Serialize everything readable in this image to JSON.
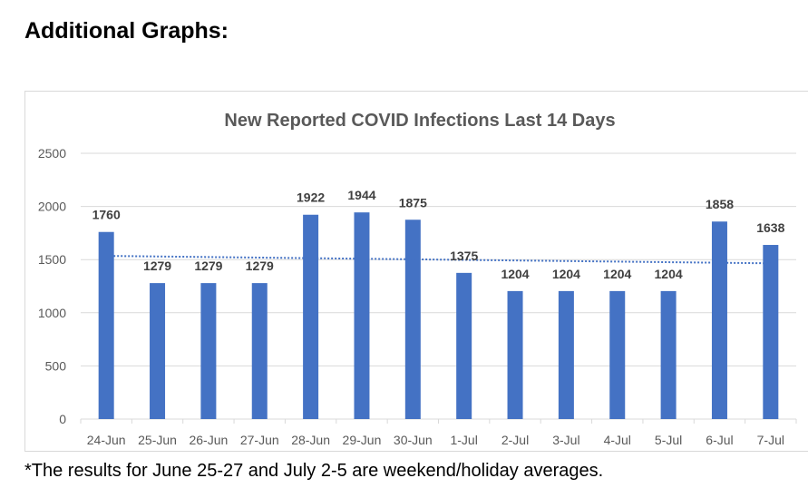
{
  "page": {
    "heading": "Additional Graphs:",
    "footnote": "*The results for June 25-27 and July 2-5 are weekend/holiday averages."
  },
  "colors": {
    "bar": "#4472c4",
    "trendline": "#4472c4",
    "grid": "#d9d9d9",
    "axis_text": "#595959",
    "title_text": "#595959",
    "label_text": "#404040"
  },
  "chart_data": {
    "type": "bar",
    "title": "New Reported COVID Infections Last 14 Days",
    "xlabel": "",
    "ylabel": "",
    "ylim": [
      0,
      2500
    ],
    "yticks": [
      "0",
      "500",
      "1000",
      "1500",
      "2000",
      "2500"
    ],
    "grid": true,
    "legend": "none",
    "categories": [
      "24-Jun",
      "25-Jun",
      "26-Jun",
      "27-Jun",
      "28-Jun",
      "29-Jun",
      "30-Jun",
      "1-Jul",
      "2-Jul",
      "3-Jul",
      "4-Jul",
      "5-Jul",
      "6-Jul",
      "7-Jul"
    ],
    "values": [
      1760,
      1279,
      1279,
      1279,
      1922,
      1944,
      1875,
      1375,
      1204,
      1204,
      1204,
      1204,
      1858,
      1638
    ],
    "data_labels": [
      "1760",
      "1279",
      "1279",
      "1279",
      "1922",
      "1944",
      "1875",
      "1375",
      "1204",
      "1204",
      "1204",
      "1204",
      "1858",
      "1638"
    ],
    "trendline": {
      "type": "linear",
      "style": "dotted",
      "start_value": 1535,
      "end_value": 1465
    }
  }
}
